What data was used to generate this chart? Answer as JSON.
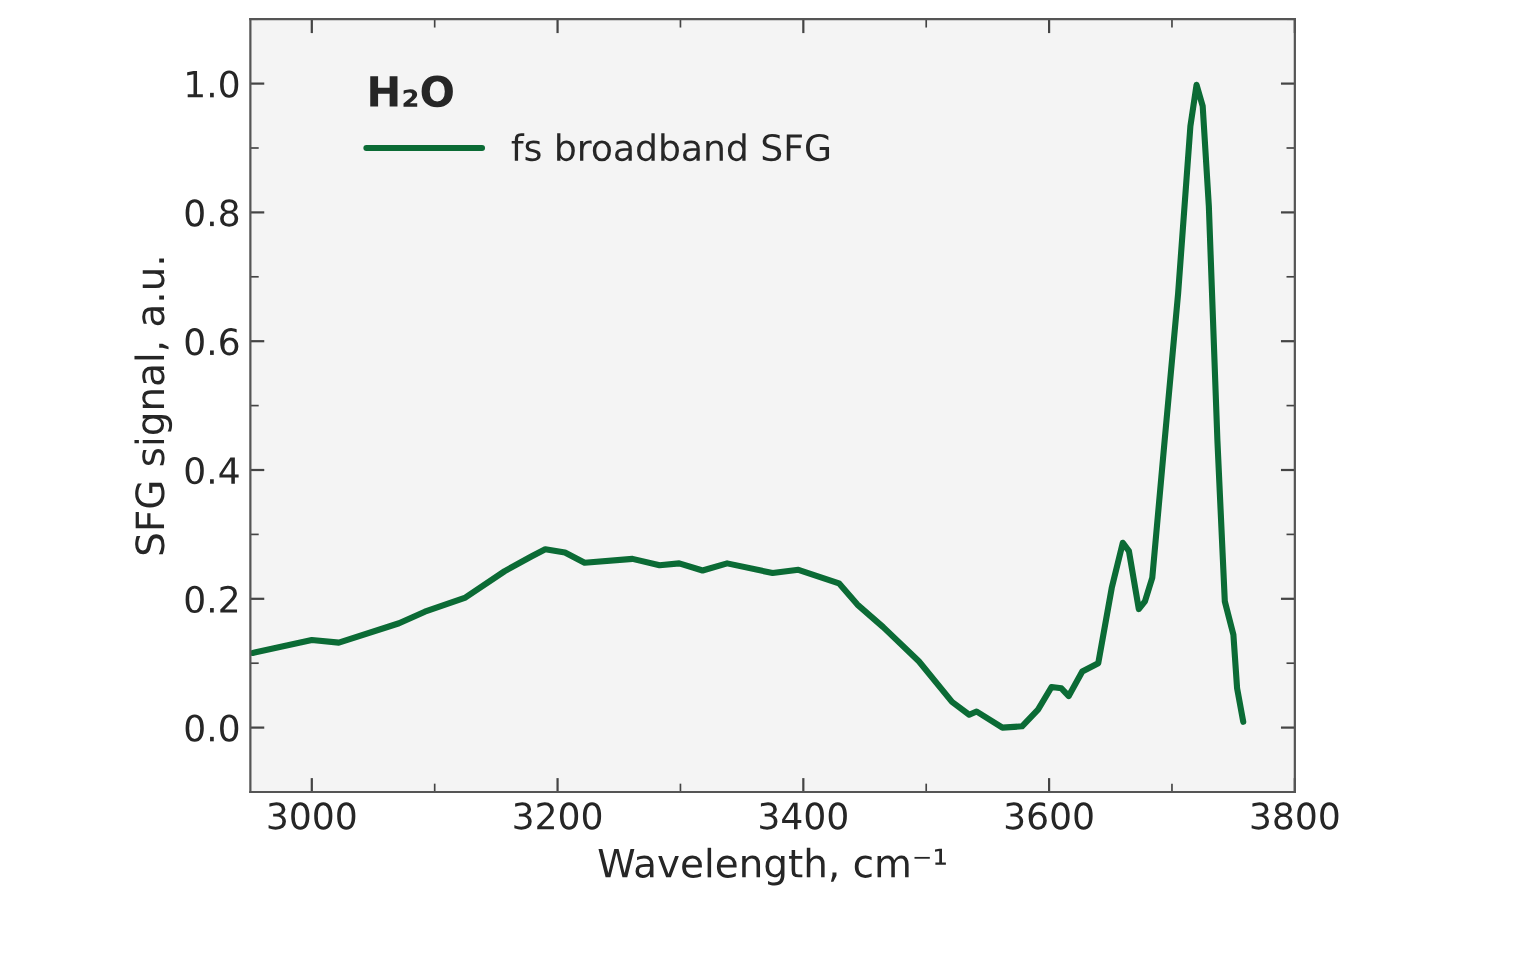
{
  "chart_data": {
    "type": "line",
    "xlabel": "Wavelength, cm⁻¹",
    "ylabel": "SFG signal, a.u.",
    "legend_title": "H₂O",
    "xlim": [
      2950,
      3800
    ],
    "xticks": [
      3000,
      3200,
      3400,
      3600,
      3800
    ],
    "ylim": [
      -0.1,
      1.1
    ],
    "yticks": [
      {
        "value": 0,
        "label": "0.0"
      },
      0.2,
      0.4,
      0.6,
      0.8,
      {
        "value": 1,
        "label": "1.0"
      }
    ],
    "grid": false,
    "legend": "top left",
    "marker": "none",
    "line_style": "solid",
    "series": [
      {
        "name": "fs broadband SFG",
        "color": "#0b6b35",
        "x": [
          2952,
          3000,
          3022,
          3071,
          3092,
          3125,
          3157,
          3179,
          3190,
          3206,
          3222,
          3261,
          3283,
          3299,
          3318,
          3338,
          3375,
          3396,
          3429,
          3444,
          3465,
          3494,
          3521,
          3535,
          3541,
          3562,
          3578,
          3591,
          3602,
          3610,
          3616,
          3627,
          3640,
          3651,
          3660,
          3665,
          3673,
          3678,
          3684,
          3694,
          3705,
          3715,
          3720,
          3725,
          3730,
          3737,
          3743,
          3750,
          3753,
          3758
        ],
        "values": [
          0.116,
          0.136,
          0.132,
          0.162,
          0.18,
          0.202,
          0.243,
          0.266,
          0.277,
          0.272,
          0.256,
          0.262,
          0.252,
          0.255,
          0.244,
          0.255,
          0.24,
          0.245,
          0.224,
          0.191,
          0.156,
          0.103,
          0.04,
          0.02,
          0.025,
          0.0,
          0.002,
          0.028,
          0.063,
          0.061,
          0.049,
          0.087,
          0.1,
          0.217,
          0.287,
          0.274,
          0.184,
          0.196,
          0.233,
          0.445,
          0.674,
          0.934,
          0.998,
          0.965,
          0.81,
          0.445,
          0.196,
          0.144,
          0.061,
          0.009
        ]
      }
    ]
  }
}
